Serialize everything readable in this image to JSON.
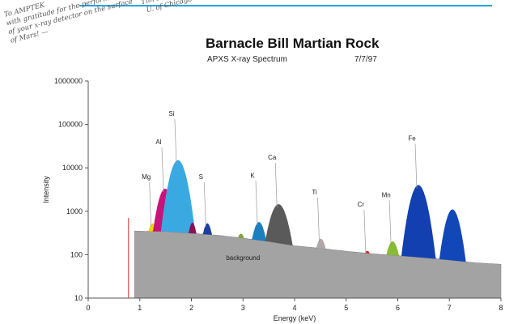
{
  "handwritten_note": {
    "lines": [
      "To AMPTEK",
      "with gratitude for the performance",
      "of your x-ray detector on the surface",
      "of Mars! —"
    ],
    "signature": [
      "Tim Economou",
      "U. of Chicago"
    ]
  },
  "chart_data": {
    "type": "area",
    "title": "Barnacle Bill Martian Rock",
    "subtitle": "APXS X-ray Spectrum",
    "date": "7/7/97",
    "xlabel": "Energy (keV)",
    "ylabel": "Intensity",
    "xlim": [
      0,
      8
    ],
    "ylim": [
      10,
      1000000
    ],
    "yscale": "log",
    "grid": false,
    "x_ticks": [
      0,
      1,
      2,
      3,
      4,
      5,
      6,
      7,
      8
    ],
    "y_ticks": [
      10,
      100,
      1000,
      10000,
      100000,
      1000000
    ],
    "background": {
      "name": "background",
      "color": "#a3a3a3",
      "x": [
        0.9,
        1.5,
        2.0,
        2.5,
        3.0,
        3.5,
        4.0,
        4.5,
        5.0,
        5.5,
        6.0,
        6.5,
        7.0,
        7.5,
        8.0
      ],
      "values": [
        350,
        340,
        310,
        280,
        240,
        200,
        160,
        140,
        120,
        105,
        95,
        85,
        75,
        65,
        60
      ]
    },
    "peaks": [
      {
        "name": "Mg",
        "center": 1.25,
        "height": 520,
        "width": 0.09,
        "color": "#f2d400"
      },
      {
        "name": "Al",
        "center": 1.49,
        "height": 3300,
        "width": 0.11,
        "color": "#c8147a"
      },
      {
        "name": "Si",
        "center": 1.74,
        "height": 15000,
        "width": 0.12,
        "color": "#3aa9e2"
      },
      {
        "name": "",
        "center": 2.02,
        "height": 540,
        "width": 0.07,
        "color": "#8a1250"
      },
      {
        "name": "S",
        "center": 2.31,
        "height": 520,
        "width": 0.08,
        "color": "#1f3f9f"
      },
      {
        "name": "",
        "center": 2.96,
        "height": 300,
        "width": 0.09,
        "color": "#7fa83a"
      },
      {
        "name": "K",
        "center": 3.31,
        "height": 560,
        "width": 0.1,
        "color": "#1e7fbf"
      },
      {
        "name": "Ca",
        "center": 3.69,
        "height": 1450,
        "width": 0.13,
        "color": "#5a5a5a"
      },
      {
        "name": "Ti",
        "center": 4.51,
        "height": 230,
        "width": 0.09,
        "color": "#b0a8a8"
      },
      {
        "name": "Cr",
        "center": 5.41,
        "height": 120,
        "width": 0.09,
        "color": "#e0201c"
      },
      {
        "name": "Mn",
        "center": 5.9,
        "height": 200,
        "width": 0.1,
        "color": "#86bb33"
      },
      {
        "name": "Fe",
        "center": 6.4,
        "height": 4000,
        "width": 0.12,
        "color": "#1240b0"
      },
      {
        "name": "",
        "center": 7.06,
        "height": 1100,
        "width": 0.11,
        "color": "#1247b8"
      }
    ],
    "annotations": [
      "background"
    ]
  }
}
